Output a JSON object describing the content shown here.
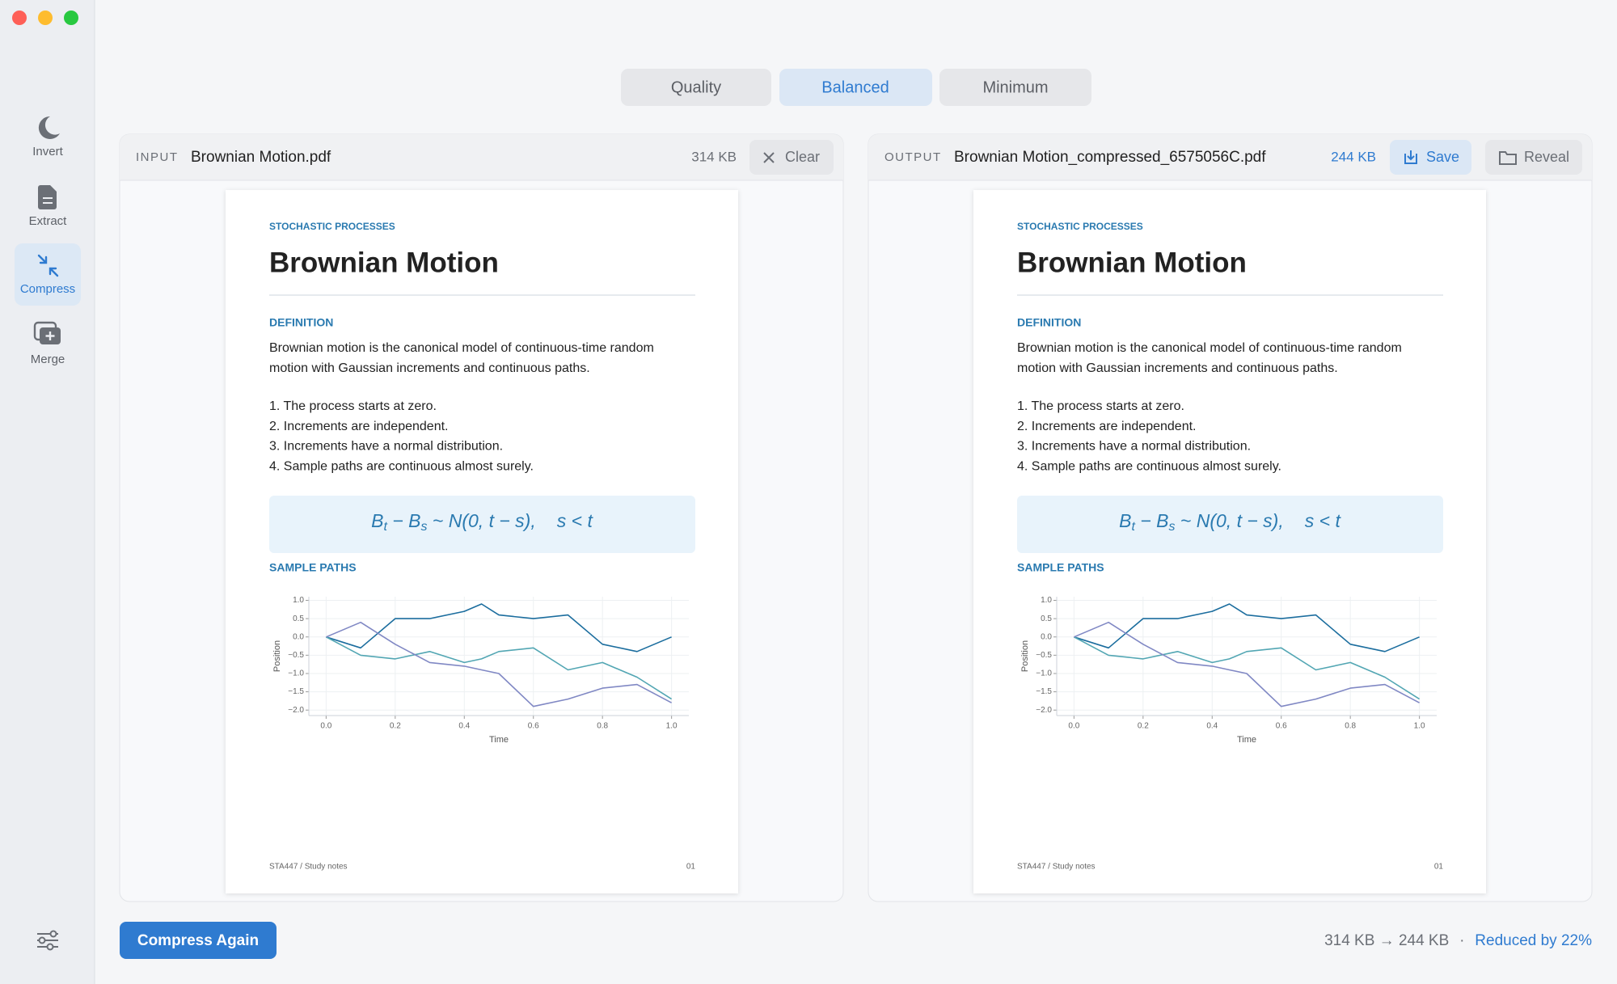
{
  "sidebar": [
    "Invert",
    "Extract",
    "Compress",
    "Merge"
  ],
  "modes": [
    "Quality",
    "Balanced",
    "Minimum"
  ],
  "input": {
    "tag": "INPUT",
    "filename": "Brownian Motion.pdf",
    "size": "314 KB",
    "button": "Clear",
    "preview": {
      "kicker": "STOCHASTIC PROCESSES",
      "title": "Brownian Motion",
      "section1": "DEFINITION",
      "paragraph": [
        "Brownian motion is the canonical model of continuous-time random",
        "motion with Gaussian increments and continuous paths."
      ],
      "list": [
        "1. The process starts at zero.",
        "2. Increments are independent.",
        "3. Increments have a normal distribution.",
        "4. Sample paths are continuous almost surely."
      ],
      "formula": [
        "B",
        "t",
        " − ",
        "B",
        "s",
        " ~ N(0, t − s),",
        "s < t"
      ],
      "section2": "SAMPLE PATHS",
      "chart": {
        "type": "line",
        "xlabel": "Time",
        "ylabel": "Position",
        "x": [
          0,
          0.1,
          0.2,
          0.3,
          0.4,
          0.45,
          0.5,
          0.6,
          0.7,
          0.8,
          0.9,
          1
        ],
        "series": [
          {
            "color": "#1b6d9e",
            "values": [
              0,
              -0.3,
              0.5,
              0.5,
              0.7,
              0.9,
              0.6,
              0.5,
              0.6,
              -0.2,
              -0.4,
              0
            ]
          },
          {
            "color": "#52a6b3",
            "values": [
              0,
              -0.5,
              -0.6,
              -0.4,
              -0.7,
              -0.6,
              -0.4,
              -0.3,
              -0.9,
              -0.7,
              -1.1,
              -1.7
            ]
          },
          {
            "color": "#8088c4",
            "values": [
              0,
              0.4,
              -0.2,
              -0.7,
              -0.8,
              -0.9,
              -1,
              -1.9,
              -1.7,
              -1.4,
              -1.3,
              -1.8
            ]
          }
        ],
        "xlim": [
          -0.05,
          1.05
        ],
        "ylim": [
          -2.15,
          1.1
        ],
        "xticks": [
          {
            "value": 0,
            "label": "0.0"
          },
          0.2,
          0.4,
          0.6,
          0.8,
          {
            "value": 1,
            "label": "1.0"
          }
        ],
        "yticks": [
          {
            "value": 1,
            "label": "1.0"
          },
          0.5,
          {
            "value": 0,
            "label": "0.0"
          },
          {
            "value": -0.5,
            "label": "−0.5"
          },
          {
            "value": -1,
            "label": "−1.0"
          },
          {
            "value": -1.5,
            "label": "−1.5"
          },
          {
            "value": -2,
            "label": "−2.0"
          }
        ],
        "grid": true
      },
      "footer_left": "STA447 / Study notes",
      "footer_right": "01"
    }
  },
  "output": {
    "tag": "OUTPUT",
    "filename": "Brownian Motion_compressed_6575056C.pdf",
    "size": "244 KB",
    "buttons": [
      "Save",
      "Reveal"
    ],
    "preview": {
      "kicker": "STOCHASTIC PROCESSES",
      "title": "Brownian Motion",
      "section1": "DEFINITION",
      "paragraph": [
        "Brownian motion is the canonical model of continuous-time random",
        "motion with Gaussian increments and continuous paths."
      ],
      "list": [
        "1. The process starts at zero.",
        "2. Increments are independent.",
        "3. Increments have a normal distribution.",
        "4. Sample paths are continuous almost surely."
      ],
      "formula": [
        "B",
        "t",
        " − ",
        "B",
        "s",
        " ~ N(0, t − s),",
        "s < t"
      ],
      "section2": "SAMPLE PATHS",
      "chart": {
        "type": "line",
        "xlabel": "Time",
        "ylabel": "Position",
        "x": [
          0,
          0.1,
          0.2,
          0.3,
          0.4,
          0.45,
          0.5,
          0.6,
          0.7,
          0.8,
          0.9,
          1
        ],
        "series": [
          {
            "color": "#1b6d9e",
            "values": [
              0,
              -0.3,
              0.5,
              0.5,
              0.7,
              0.9,
              0.6,
              0.5,
              0.6,
              -0.2,
              -0.4,
              0
            ]
          },
          {
            "color": "#52a6b3",
            "values": [
              0,
              -0.5,
              -0.6,
              -0.4,
              -0.7,
              -0.6,
              -0.4,
              -0.3,
              -0.9,
              -0.7,
              -1.1,
              -1.7
            ]
          },
          {
            "color": "#8088c4",
            "values": [
              0,
              0.4,
              -0.2,
              -0.7,
              -0.8,
              -0.9,
              -1,
              -1.9,
              -1.7,
              -1.4,
              -1.3,
              -1.8
            ]
          }
        ],
        "xlim": [
          -0.05,
          1.05
        ],
        "ylim": [
          -2.15,
          1.1
        ],
        "xticks": [
          {
            "value": 0,
            "label": "0.0"
          },
          0.2,
          0.4,
          0.6,
          0.8,
          {
            "value": 1,
            "label": "1.0"
          }
        ],
        "yticks": [
          {
            "value": 1,
            "label": "1.0"
          },
          0.5,
          {
            "value": 0,
            "label": "0.0"
          },
          {
            "value": -0.5,
            "label": "−0.5"
          },
          {
            "value": -1,
            "label": "−1.0"
          },
          {
            "value": -1.5,
            "label": "−1.5"
          },
          {
            "value": -2,
            "label": "−2.0"
          }
        ],
        "grid": true
      },
      "footer_left": "STA447 / Study notes",
      "footer_right": "01"
    }
  },
  "footer": {
    "button": "Compress Again",
    "sizes": "314 KB → 244 KB",
    "separator": "·",
    "result": "Reduced by 22%"
  }
}
